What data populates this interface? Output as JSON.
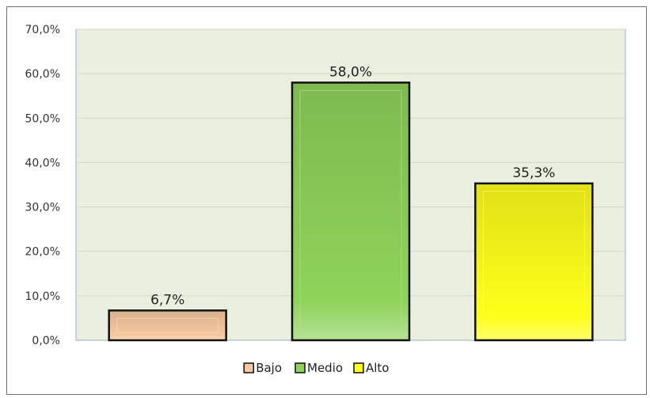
{
  "chart_data": {
    "type": "bar",
    "categories": [
      "Bajo",
      "Medio",
      "Alto"
    ],
    "values": [
      6.7,
      58.0,
      35.3
    ],
    "value_labels": [
      "6,7%",
      "58,0%",
      "35,3%"
    ],
    "colors": [
      "#f7c9a0",
      "#8fd35a",
      "#ffff1a"
    ],
    "ylim": [
      0,
      70
    ],
    "yticks": [
      0,
      10,
      20,
      30,
      40,
      50,
      60,
      70
    ],
    "ytick_labels": [
      "0,0%",
      "10,0%",
      "20,0%",
      "30,0%",
      "40,0%",
      "50,0%",
      "60,0%",
      "70,0%"
    ],
    "grid": true,
    "legend": {
      "position": "bottom",
      "entries": [
        "Bajo",
        "Medio",
        "Alto"
      ]
    },
    "plot_background": "#ebefdf"
  }
}
